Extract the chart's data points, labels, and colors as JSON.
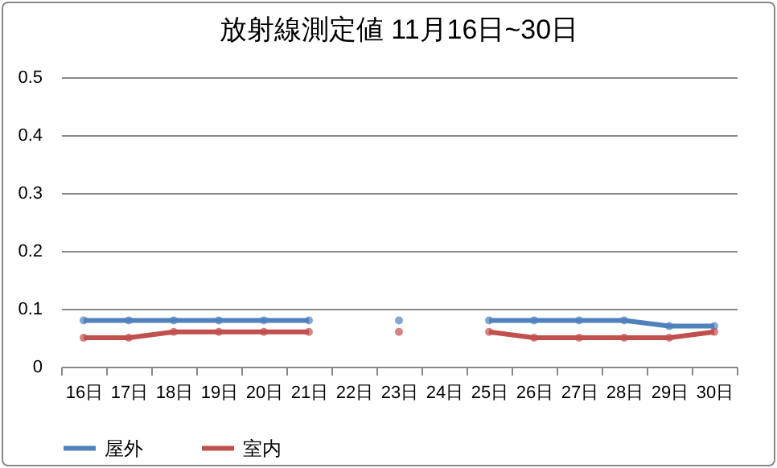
{
  "chart_data": {
    "type": "line",
    "title": "放射線測定値  11月16日~30日",
    "categories": [
      "16日",
      "17日",
      "18日",
      "19日",
      "20日",
      "21日",
      "22日",
      "23日",
      "24日",
      "25日",
      "26日",
      "27日",
      "28日",
      "29日",
      "30日"
    ],
    "series": [
      {
        "name": "屋外",
        "color": "#4f81bd",
        "values": [
          0.08,
          0.08,
          0.08,
          0.08,
          0.08,
          0.08,
          null,
          0.08,
          null,
          0.08,
          0.08,
          0.08,
          0.08,
          0.07,
          0.07
        ]
      },
      {
        "name": "室内",
        "color": "#c0504d",
        "values": [
          0.05,
          0.05,
          0.06,
          0.06,
          0.06,
          0.06,
          null,
          0.06,
          null,
          0.06,
          0.05,
          0.05,
          0.05,
          0.05,
          0.06
        ]
      }
    ],
    "ylim": [
      0,
      0.5
    ],
    "yticks": [
      0,
      0.1,
      0.2,
      0.3,
      0.4,
      0.5
    ],
    "grid": "y",
    "legend": "bottom",
    "marker": "circle",
    "line_style": "solid"
  }
}
